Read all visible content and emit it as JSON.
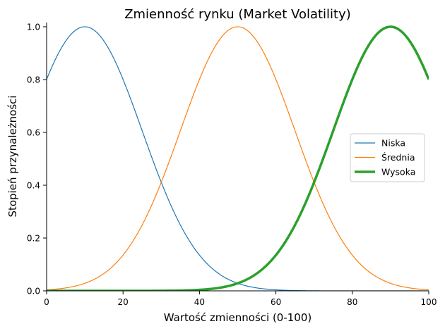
{
  "chart_data": {
    "type": "line",
    "title": "Zmienność rynku (Market Volatility)",
    "xlabel": "Wartość zmienności (0-100)",
    "ylabel": "Stopień przynależności",
    "xlim": [
      0,
      100
    ],
    "ylim": [
      0,
      1.0
    ],
    "xticks": [
      "0",
      "20",
      "40",
      "60",
      "80",
      "100"
    ],
    "yticks": [
      "0.0",
      "0.2",
      "0.4",
      "0.6",
      "0.8",
      "1.0"
    ],
    "grid": false,
    "legend_position": "center-right",
    "series": [
      {
        "name": "Niska",
        "function": "gaussian",
        "mean": 10,
        "sigma": 15,
        "color": "#1f77b4",
        "linewidth": "thin"
      },
      {
        "name": "Średnia",
        "function": "gaussian",
        "mean": 50,
        "sigma": 15,
        "color": "#ff7f0e",
        "linewidth": "thin"
      },
      {
        "name": "Wysoka",
        "function": "gaussian",
        "mean": 90,
        "sigma": 15,
        "color": "#2ca02c",
        "linewidth": "thick"
      }
    ]
  }
}
